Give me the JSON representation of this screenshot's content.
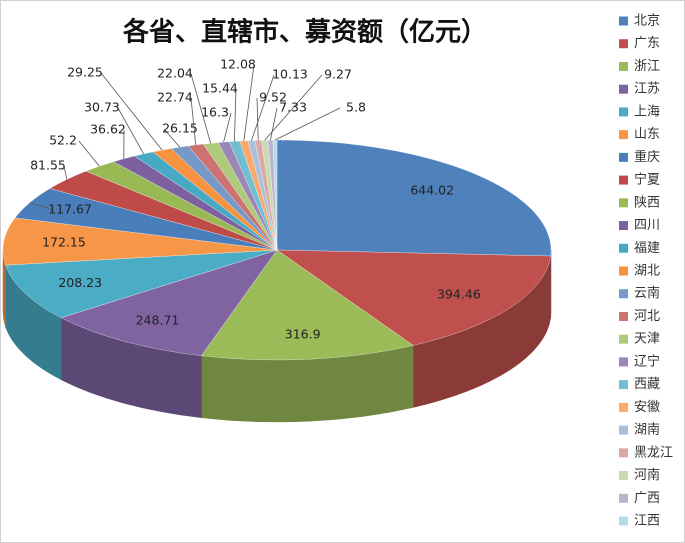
{
  "chart_data": {
    "type": "pie",
    "title": "各省、直辖市、募资额（亿元）",
    "categories": [
      "北京",
      "广东",
      "浙江",
      "江苏",
      "上海",
      "山东",
      "重庆",
      "宁夏",
      "陕西",
      "四川",
      "福建",
      "湖北",
      "云南",
      "河北",
      "天津",
      "辽宁",
      "西藏",
      "安徽",
      "湖南",
      "黑龙江",
      "河南",
      "广西",
      "江西"
    ],
    "values": [
      644.02,
      394.46,
      316.9,
      248.71,
      208.23,
      172.15,
      117.67,
      81.55,
      52.2,
      36.62,
      30.73,
      29.25,
      26.15,
      22.74,
      22.04,
      16.3,
      15.44,
      12.08,
      10.13,
      9.52,
      9.27,
      7.33,
      5.8
    ],
    "colors": [
      "#4F81BD",
      "#C0504D",
      "#9BBB59",
      "#8064A2",
      "#4BACC6",
      "#F79646",
      "#4A7EBB",
      "#BE4B48",
      "#98B954",
      "#7D60A0",
      "#46AAC5",
      "#F69240",
      "#7699C8",
      "#CC7270",
      "#B0CA7C",
      "#9B86B6",
      "#71BED2",
      "#F9AA6B",
      "#A9C0DD",
      "#DCA8A7",
      "#C9DAAE",
      "#BEB2D1",
      "#B7DCE7"
    ],
    "legend": "right"
  }
}
